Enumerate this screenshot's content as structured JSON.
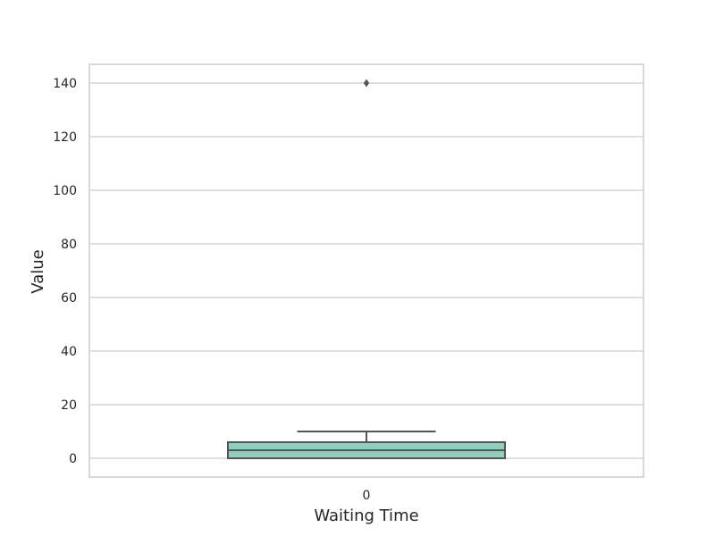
{
  "chart_data": {
    "type": "box",
    "categories": [
      "0"
    ],
    "xlabel": "Waiting Time",
    "ylabel": "Value",
    "ylim": [
      -7,
      147
    ],
    "yticks": [
      0,
      20,
      40,
      60,
      80,
      100,
      120,
      140
    ],
    "grid": true,
    "boxes": [
      {
        "category": "0",
        "min": 0,
        "q1": 0,
        "median": 3,
        "q3": 6,
        "max": 10,
        "outliers": [
          140
        ]
      }
    ],
    "colors": {
      "box_fill": "#8fcfbd",
      "box_edge": "#555555",
      "grid": "#cccccc",
      "frame": "#cccccc"
    }
  }
}
